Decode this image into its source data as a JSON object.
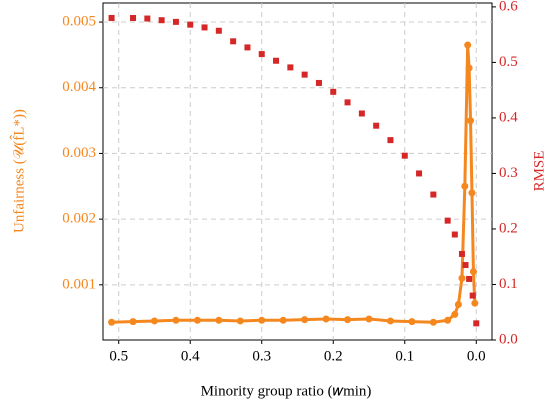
{
  "chart_data": {
    "type": "line",
    "xlabel": "Minority group ratio (𝑤min)",
    "ylabel": "Unfairness (𝒰(f̂L*))",
    "y2label": "RMSE",
    "xlim": [
      0.522,
      -0.022
    ],
    "xticks": [
      0.5,
      0.4,
      0.3,
      0.2,
      0.1,
      {
        "value": 0,
        "label": "0.0"
      }
    ],
    "ylim": [
      0.00016,
      0.00529
    ],
    "yticks": [
      0.001,
      0.002,
      0.003,
      0.004,
      0.005
    ],
    "y2lim": [
      0,
      0.607
    ],
    "y2ticks": [
      {
        "value": 0,
        "label": "0.0"
      },
      0.1,
      0.2,
      0.3,
      0.4,
      0.5,
      0.6
    ],
    "grid": true,
    "series": [
      {
        "name": "Unfairness",
        "color": "#f5871f",
        "x": [
          0.51,
          0.48,
          0.45,
          0.42,
          0.39,
          0.36,
          0.33,
          0.3,
          0.27,
          0.24,
          0.21,
          0.18,
          0.15,
          0.12,
          0.09,
          0.06,
          0.04,
          0.03,
          0.025,
          0.02,
          0.016,
          0.012,
          0.01,
          0.008,
          0.006,
          0.004,
          0.002
        ],
        "values": [
          0.00043,
          0.00044,
          0.00045,
          0.00046,
          0.00046,
          0.00046,
          0.00045,
          0.00046,
          0.00046,
          0.00047,
          0.00048,
          0.00047,
          0.00048,
          0.00045,
          0.00044,
          0.00043,
          0.00046,
          0.00055,
          0.0007,
          0.0011,
          0.0025,
          0.00465,
          0.0043,
          0.0035,
          0.0024,
          0.0012,
          0.00072
        ]
      },
      {
        "name": "RMSE",
        "color": "#d62728",
        "axis": "y2",
        "x": [
          0.51,
          0.48,
          0.46,
          0.44,
          0.42,
          0.4,
          0.38,
          0.36,
          0.34,
          0.32,
          0.3,
          0.28,
          0.26,
          0.24,
          0.22,
          0.2,
          0.18,
          0.16,
          0.14,
          0.12,
          0.1,
          0.08,
          0.06,
          0.04,
          0.03,
          0.02,
          0.015,
          0.01,
          0.005,
          0.0
        ],
        "values": [
          0.58,
          0.58,
          0.579,
          0.576,
          0.573,
          0.568,
          0.563,
          0.557,
          0.538,
          0.527,
          0.515,
          0.503,
          0.491,
          0.478,
          0.463,
          0.447,
          0.428,
          0.408,
          0.386,
          0.36,
          0.332,
          0.3,
          0.262,
          0.215,
          0.19,
          0.155,
          0.135,
          0.11,
          0.08,
          0.03
        ]
      }
    ]
  }
}
